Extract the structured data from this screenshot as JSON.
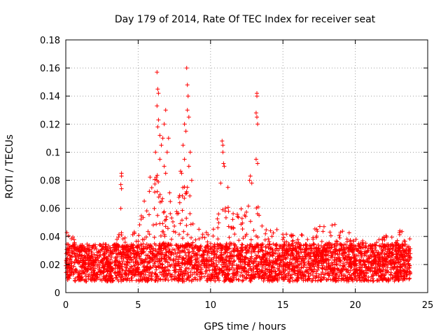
{
  "chart_data": {
    "type": "scatter",
    "title": "Day 179 of 2014, Rate Of TEC Index for receiver seat",
    "xlabel": "GPS time / hours",
    "ylabel": "ROTI / TECUs",
    "xlim": [
      0,
      25
    ],
    "ylim": [
      0,
      0.18
    ],
    "xticks": [
      0,
      5,
      10,
      15,
      20,
      25
    ],
    "xtick_labels": [
      "0",
      "5",
      "10",
      "15",
      "20",
      "25"
    ],
    "yticks": [
      0,
      0.02,
      0.04,
      0.06,
      0.08,
      0.1,
      0.12,
      0.14,
      0.16,
      0.18
    ],
    "ytick_labels": [
      "0",
      "0.02",
      "0.04",
      "0.06",
      "0.08",
      "0.1",
      "0.12",
      "0.14",
      "0.16",
      "0.18"
    ],
    "grid": true,
    "marker": "plus",
    "color": "#ff0000",
    "data_range_hours": [
      0,
      23.8
    ],
    "background_band": {
      "low": 0.008,
      "high": 0.035
    },
    "envelope": [
      {
        "x": 0.0,
        "ymax": 0.045
      },
      {
        "x": 1.0,
        "ymax": 0.035
      },
      {
        "x": 2.0,
        "ymax": 0.028
      },
      {
        "x": 3.0,
        "ymax": 0.035
      },
      {
        "x": 4.0,
        "ymax": 0.045
      },
      {
        "x": 5.0,
        "ymax": 0.05
      },
      {
        "x": 6.0,
        "ymax": 0.09
      },
      {
        "x": 7.0,
        "ymax": 0.075
      },
      {
        "x": 8.0,
        "ymax": 0.09
      },
      {
        "x": 9.0,
        "ymax": 0.055
      },
      {
        "x": 10.0,
        "ymax": 0.045
      },
      {
        "x": 11.0,
        "ymax": 0.065
      },
      {
        "x": 12.0,
        "ymax": 0.06
      },
      {
        "x": 13.0,
        "ymax": 0.07
      },
      {
        "x": 14.0,
        "ymax": 0.045
      },
      {
        "x": 15.0,
        "ymax": 0.045
      },
      {
        "x": 16.0,
        "ymax": 0.04
      },
      {
        "x": 17.0,
        "ymax": 0.045
      },
      {
        "x": 18.0,
        "ymax": 0.05
      },
      {
        "x": 19.0,
        "ymax": 0.05
      },
      {
        "x": 20.0,
        "ymax": 0.04
      },
      {
        "x": 21.0,
        "ymax": 0.035
      },
      {
        "x": 22.0,
        "ymax": 0.04
      },
      {
        "x": 23.0,
        "ymax": 0.045
      },
      {
        "x": 23.8,
        "ymax": 0.04
      }
    ],
    "spikes": [
      {
        "x": 3.85,
        "y": 0.085
      },
      {
        "x": 3.85,
        "y": 0.083
      },
      {
        "x": 3.8,
        "y": 0.077
      },
      {
        "x": 3.85,
        "y": 0.074
      },
      {
        "x": 3.8,
        "y": 0.06
      },
      {
        "x": 6.3,
        "y": 0.157
      },
      {
        "x": 6.35,
        "y": 0.145
      },
      {
        "x": 6.4,
        "y": 0.142
      },
      {
        "x": 6.3,
        "y": 0.133
      },
      {
        "x": 6.4,
        "y": 0.123
      },
      {
        "x": 6.35,
        "y": 0.118
      },
      {
        "x": 6.5,
        "y": 0.112
      },
      {
        "x": 6.6,
        "y": 0.105
      },
      {
        "x": 6.2,
        "y": 0.1
      },
      {
        "x": 6.7,
        "y": 0.11
      },
      {
        "x": 6.8,
        "y": 0.12
      },
      {
        "x": 6.9,
        "y": 0.13
      },
      {
        "x": 7.0,
        "y": 0.1
      },
      {
        "x": 6.5,
        "y": 0.095
      },
      {
        "x": 6.8,
        "y": 0.09
      },
      {
        "x": 7.1,
        "y": 0.11
      },
      {
        "x": 6.9,
        "y": 0.085
      },
      {
        "x": 6.3,
        "y": 0.08
      },
      {
        "x": 8.35,
        "y": 0.16
      },
      {
        "x": 8.4,
        "y": 0.148
      },
      {
        "x": 8.45,
        "y": 0.14
      },
      {
        "x": 8.4,
        "y": 0.13
      },
      {
        "x": 8.5,
        "y": 0.125
      },
      {
        "x": 8.2,
        "y": 0.12
      },
      {
        "x": 8.3,
        "y": 0.115
      },
      {
        "x": 8.1,
        "y": 0.105
      },
      {
        "x": 8.6,
        "y": 0.1
      },
      {
        "x": 8.2,
        "y": 0.095
      },
      {
        "x": 8.5,
        "y": 0.09
      },
      {
        "x": 8.0,
        "y": 0.085
      },
      {
        "x": 8.7,
        "y": 0.08
      },
      {
        "x": 8.4,
        "y": 0.075
      },
      {
        "x": 10.8,
        "y": 0.108
      },
      {
        "x": 10.85,
        "y": 0.105
      },
      {
        "x": 10.85,
        "y": 0.1
      },
      {
        "x": 10.9,
        "y": 0.092
      },
      {
        "x": 10.95,
        "y": 0.09
      },
      {
        "x": 10.7,
        "y": 0.078
      },
      {
        "x": 11.2,
        "y": 0.075
      },
      {
        "x": 12.75,
        "y": 0.083
      },
      {
        "x": 12.7,
        "y": 0.08
      },
      {
        "x": 12.85,
        "y": 0.078
      },
      {
        "x": 13.2,
        "y": 0.142
      },
      {
        "x": 13.2,
        "y": 0.14
      },
      {
        "x": 13.15,
        "y": 0.128
      },
      {
        "x": 13.2,
        "y": 0.125
      },
      {
        "x": 13.25,
        "y": 0.12
      },
      {
        "x": 13.15,
        "y": 0.095
      },
      {
        "x": 13.25,
        "y": 0.092
      }
    ]
  }
}
